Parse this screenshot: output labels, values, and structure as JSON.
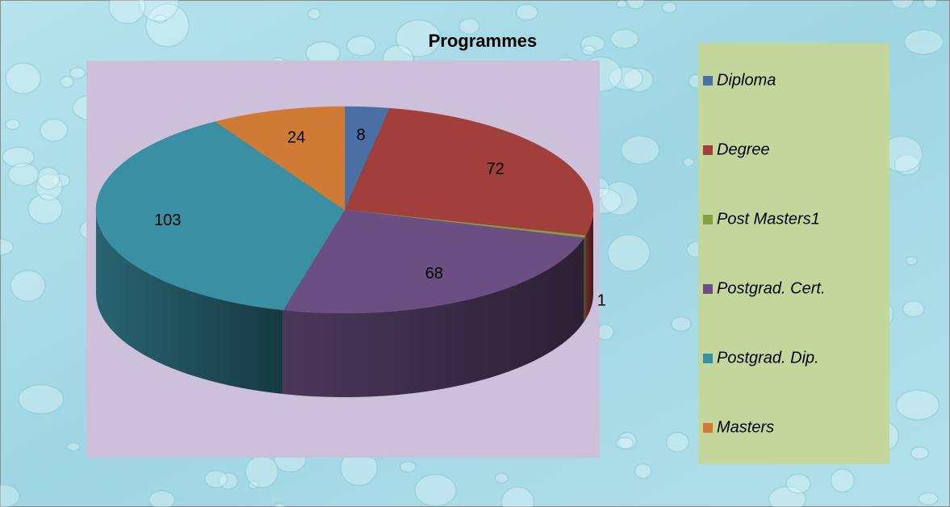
{
  "chart_data": {
    "type": "pie3d",
    "title": "Programmes",
    "categories": [
      "Diploma",
      "Degree",
      "Post Masters1",
      "Postgrad. Cert.",
      "Postgrad. Dip.",
      "Masters"
    ],
    "values": [
      8,
      72,
      1,
      68,
      103,
      24
    ],
    "colors": [
      "#4a6fa5",
      "#a03f3c",
      "#86a044",
      "#6b4f82",
      "#3a8fa3",
      "#d07b35"
    ],
    "legend": "right"
  }
}
